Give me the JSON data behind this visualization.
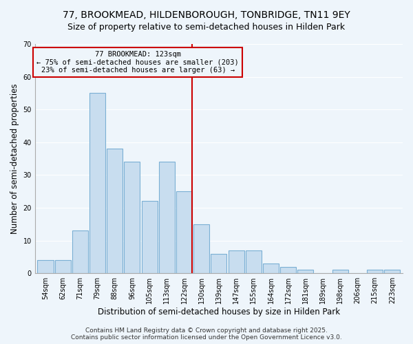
{
  "title": "77, BROOKMEAD, HILDENBOROUGH, TONBRIDGE, TN11 9EY",
  "subtitle": "Size of property relative to semi-detached houses in Hilden Park",
  "xlabel": "Distribution of semi-detached houses by size in Hilden Park",
  "ylabel": "Number of semi-detached properties",
  "bar_labels": [
    "54sqm",
    "62sqm",
    "71sqm",
    "79sqm",
    "88sqm",
    "96sqm",
    "105sqm",
    "113sqm",
    "122sqm",
    "130sqm",
    "139sqm",
    "147sqm",
    "155sqm",
    "164sqm",
    "172sqm",
    "181sqm",
    "189sqm",
    "198sqm",
    "206sqm",
    "215sqm",
    "223sqm"
  ],
  "bar_heights": [
    4,
    4,
    13,
    55,
    38,
    34,
    22,
    34,
    25,
    15,
    6,
    7,
    7,
    3,
    2,
    1,
    0,
    1,
    0,
    1,
    1
  ],
  "bar_color": "#c8ddef",
  "bar_edge_color": "#7aafd4",
  "vline_x_index": 8,
  "vline_color": "#cc0000",
  "annotation_title": "77 BROOKMEAD: 123sqm",
  "annotation_line1": "← 75% of semi-detached houses are smaller (203)",
  "annotation_line2": "23% of semi-detached houses are larger (63) →",
  "annotation_box_edge": "#cc0000",
  "ylim": [
    0,
    70
  ],
  "yticks": [
    0,
    10,
    20,
    30,
    40,
    50,
    60,
    70
  ],
  "footer_line1": "Contains HM Land Registry data © Crown copyright and database right 2025.",
  "footer_line2": "Contains public sector information licensed under the Open Government Licence v3.0.",
  "bg_color": "#eef5fb",
  "grid_color": "#ffffff",
  "title_fontsize": 10,
  "subtitle_fontsize": 9,
  "axis_label_fontsize": 8.5,
  "tick_fontsize": 7,
  "annotation_fontsize": 7.5,
  "footer_fontsize": 6.5
}
